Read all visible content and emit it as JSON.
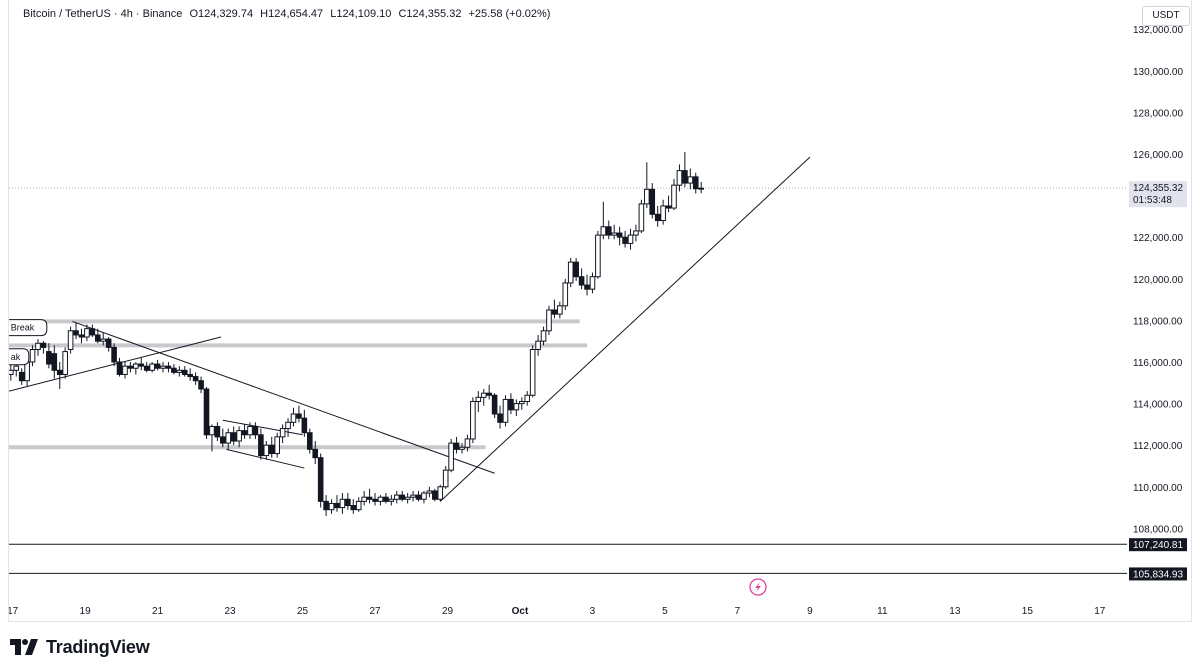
{
  "header": {
    "symbol": "Bitcoin / TetherUS · 4h · Binance",
    "open": "O124,329.74",
    "high": "H124,654.47",
    "low": "L124,109.10",
    "close": "C124,355.32",
    "change": "+25.58 (+0.02%)"
  },
  "currency": "USDT",
  "brand": "TradingView",
  "chart_data": {
    "type": "candlestick",
    "symbol": "Bitcoin / TetherUS",
    "timeframe": "4h",
    "exchange": "Binance",
    "y_ticks": [
      108000,
      110000,
      112000,
      114000,
      116000,
      118000,
      120000,
      122000,
      124000,
      126000,
      128000,
      130000,
      132000
    ],
    "y_tick_labels": [
      "108,000.00",
      "110,000.00",
      "112,000.00",
      "114,000.00",
      "116,000.00",
      "118,000.00",
      "120,000.00",
      "122,000.00",
      "",
      "126,000.00",
      "128,000.00",
      "130,000.00",
      "132,000.00"
    ],
    "x_ticks": [
      "17",
      "19",
      "21",
      "23",
      "25",
      "27",
      "29",
      "Oct",
      "3",
      "5",
      "7",
      "9",
      "11",
      "13",
      "15",
      "17"
    ],
    "x_tick_days": [
      16.75,
      18.75,
      20.75,
      22.75,
      24.75,
      26.75,
      28.75,
      30.75,
      32.75,
      34.75,
      36.75,
      38.75,
      40.75,
      42.75,
      44.75,
      46.75
    ],
    "x_range_days": [
      16.65,
      47.5
    ],
    "ylim": [
      106000,
      132200
    ],
    "last_price": 124355.32,
    "last_price_label": "124,355.32",
    "countdown_label": "01:53:48",
    "horizontal_lines": [
      {
        "price": 107240.81,
        "label": "107,240.81",
        "color": "#131722"
      },
      {
        "price": 105834.93,
        "label": "105,834.93",
        "color": "#131722"
      }
    ],
    "zones": [
      {
        "price": 117950,
        "x_start_day": 16.65,
        "x_end_day": 32.4
      },
      {
        "price": 116800,
        "x_start_day": 16.65,
        "x_end_day": 32.6
      },
      {
        "price": 111900,
        "x_start_day": 16.65,
        "x_end_day": 29.8
      }
    ],
    "trendlines": [
      {
        "p1": [
          16.65,
          114600
        ],
        "p2": [
          22.5,
          117200
        ]
      },
      {
        "p1": [
          18.4,
          117950
        ],
        "p2": [
          30.05,
          110650
        ]
      },
      {
        "p1": [
          22.55,
          113200
        ],
        "p2": [
          24.75,
          112500
        ]
      },
      {
        "p1": [
          22.65,
          111800
        ],
        "p2": [
          24.8,
          110900
        ]
      },
      {
        "p1": [
          28.55,
          109300
        ],
        "p2": [
          38.75,
          125850
        ]
      }
    ],
    "annotations": [
      {
        "text": "Break",
        "day": 16.7,
        "price": 117650
      },
      {
        "text": "ak",
        "day": 16.7,
        "price": 116250
      }
    ],
    "candles": [
      [
        16.7,
        115400,
        115900,
        115100,
        115600
      ],
      [
        16.85,
        115600,
        116000,
        115300,
        115800
      ],
      [
        17.0,
        115500,
        115700,
        114900,
        115100
      ],
      [
        17.15,
        115100,
        116200,
        114800,
        116000
      ],
      [
        17.3,
        116000,
        116800,
        115800,
        116600
      ],
      [
        17.45,
        116600,
        117100,
        116300,
        116900
      ],
      [
        17.6,
        116900,
        117000,
        116400,
        116700
      ],
      [
        17.75,
        116500,
        116900,
        115700,
        115900
      ],
      [
        17.9,
        116400,
        116800,
        115200,
        115600
      ],
      [
        18.05,
        115600,
        116000,
        114700,
        115400
      ],
      [
        18.2,
        115400,
        116700,
        115200,
        116500
      ],
      [
        18.35,
        116600,
        117700,
        116400,
        117500
      ],
      [
        18.5,
        117500,
        117900,
        117100,
        117300
      ],
      [
        18.65,
        117300,
        117600,
        116900,
        117200
      ],
      [
        18.8,
        117200,
        117800,
        117000,
        117600
      ],
      [
        18.95,
        117600,
        117800,
        117200,
        117300
      ],
      [
        19.1,
        117300,
        117600,
        116900,
        117000
      ],
      [
        19.25,
        117000,
        117400,
        116800,
        117100
      ],
      [
        19.4,
        117100,
        117200,
        116500,
        116700
      ],
      [
        19.55,
        116700,
        116900,
        115800,
        116000
      ],
      [
        19.7,
        116000,
        116200,
        115300,
        115400
      ],
      [
        19.85,
        115400,
        116000,
        115200,
        115800
      ],
      [
        20.0,
        115800,
        116000,
        115500,
        115700
      ],
      [
        20.15,
        115700,
        116000,
        115400,
        115900
      ],
      [
        20.3,
        115900,
        116200,
        115600,
        115800
      ],
      [
        20.45,
        115800,
        116000,
        115500,
        115600
      ],
      [
        20.6,
        115600,
        116000,
        115500,
        115900
      ],
      [
        20.75,
        115900,
        116100,
        115600,
        115700
      ],
      [
        20.9,
        115700,
        116000,
        115500,
        115800
      ],
      [
        21.05,
        115800,
        116000,
        115500,
        115700
      ],
      [
        21.2,
        115700,
        115900,
        115400,
        115500
      ],
      [
        21.35,
        115500,
        115800,
        115300,
        115600
      ],
      [
        21.5,
        115600,
        115800,
        115300,
        115400
      ],
      [
        21.65,
        115400,
        115700,
        115100,
        115300
      ],
      [
        21.8,
        115300,
        115500,
        114900,
        115100
      ],
      [
        21.95,
        115100,
        115300,
        114500,
        114700
      ],
      [
        22.1,
        114700,
        114800,
        112300,
        112500
      ],
      [
        22.25,
        112500,
        113000,
        111700,
        112900
      ],
      [
        22.4,
        112900,
        113100,
        112200,
        112400
      ],
      [
        22.55,
        112400,
        112800,
        111900,
        112100
      ],
      [
        22.7,
        112100,
        112800,
        111800,
        112600
      ],
      [
        22.85,
        112600,
        112900,
        112000,
        112200
      ],
      [
        23.0,
        112200,
        112900,
        111900,
        112700
      ],
      [
        23.15,
        112700,
        113000,
        112300,
        112500
      ],
      [
        23.3,
        112500,
        113100,
        112300,
        112900
      ],
      [
        23.45,
        112900,
        113100,
        112300,
        112500
      ],
      [
        23.6,
        112500,
        112800,
        111300,
        111500
      ],
      [
        23.75,
        111500,
        112200,
        111300,
        112000
      ],
      [
        23.9,
        112000,
        112400,
        111400,
        111600
      ],
      [
        24.05,
        111600,
        112600,
        111400,
        112400
      ],
      [
        24.2,
        112400,
        113000,
        112100,
        112800
      ],
      [
        24.35,
        112800,
        113300,
        112400,
        113100
      ],
      [
        24.5,
        113100,
        113800,
        112900,
        113500
      ],
      [
        24.65,
        113500,
        113900,
        113100,
        113300
      ],
      [
        24.8,
        113300,
        113700,
        112400,
        112600
      ],
      [
        24.95,
        112600,
        112800,
        111600,
        111800
      ],
      [
        25.1,
        111800,
        112200,
        111100,
        111400
      ],
      [
        25.25,
        111400,
        111600,
        109000,
        109300
      ],
      [
        25.4,
        109300,
        109600,
        108600,
        108900
      ],
      [
        25.55,
        108900,
        109400,
        108700,
        109200
      ],
      [
        25.7,
        109200,
        109600,
        108800,
        109000
      ],
      [
        25.85,
        109000,
        109700,
        108700,
        109400
      ],
      [
        26.0,
        109400,
        109700,
        108900,
        109100
      ],
      [
        26.15,
        109100,
        109400,
        108700,
        108900
      ],
      [
        26.3,
        108900,
        109500,
        108800,
        109300
      ],
      [
        26.45,
        109300,
        109800,
        109100,
        109500
      ],
      [
        26.6,
        109500,
        109900,
        109200,
        109400
      ],
      [
        26.75,
        109400,
        109700,
        109100,
        109300
      ],
      [
        26.9,
        109300,
        109600,
        109100,
        109500
      ],
      [
        27.05,
        109500,
        109700,
        109200,
        109300
      ],
      [
        27.2,
        109300,
        109600,
        109100,
        109400
      ],
      [
        27.35,
        109400,
        109800,
        109200,
        109600
      ],
      [
        27.5,
        109600,
        109800,
        109300,
        109400
      ],
      [
        27.65,
        109400,
        109700,
        109200,
        109500
      ],
      [
        27.8,
        109500,
        109800,
        109300,
        109600
      ],
      [
        27.95,
        109600,
        109800,
        109300,
        109400
      ],
      [
        28.1,
        109400,
        109800,
        109200,
        109700
      ],
      [
        28.25,
        109700,
        110000,
        109500,
        109800
      ],
      [
        28.4,
        109800,
        109900,
        109300,
        109400
      ],
      [
        28.55,
        109400,
        110100,
        109300,
        110000
      ],
      [
        28.7,
        110000,
        111000,
        109900,
        110800
      ],
      [
        28.85,
        110800,
        112300,
        110700,
        112100
      ],
      [
        29.0,
        112100,
        112400,
        111600,
        111800
      ],
      [
        29.15,
        111800,
        112100,
        111600,
        111900
      ],
      [
        29.3,
        111900,
        112500,
        111700,
        112300
      ],
      [
        29.45,
        112300,
        114300,
        112100,
        114100
      ],
      [
        29.6,
        114100,
        114600,
        113600,
        114300
      ],
      [
        29.75,
        114300,
        114700,
        113900,
        114500
      ],
      [
        29.9,
        114500,
        114900,
        114200,
        114400
      ],
      [
        30.05,
        114400,
        114500,
        113300,
        113500
      ],
      [
        30.2,
        113500,
        113900,
        112800,
        113100
      ],
      [
        30.35,
        113100,
        114400,
        112900,
        114200
      ],
      [
        30.5,
        114200,
        114500,
        113500,
        113700
      ],
      [
        30.65,
        113700,
        114200,
        113400,
        114000
      ],
      [
        30.8,
        114000,
        114300,
        113700,
        114100
      ],
      [
        30.95,
        114100,
        114600,
        113900,
        114400
      ],
      [
        31.1,
        114400,
        116800,
        114300,
        116600
      ],
      [
        31.25,
        116600,
        117300,
        116300,
        117000
      ],
      [
        31.4,
        117000,
        117700,
        116800,
        117500
      ],
      [
        31.55,
        117500,
        118700,
        117300,
        118500
      ],
      [
        31.7,
        118500,
        119000,
        118100,
        118300
      ],
      [
        31.85,
        118300,
        118900,
        118100,
        118700
      ],
      [
        32.0,
        118700,
        120000,
        118500,
        119800
      ],
      [
        32.15,
        119800,
        121000,
        119600,
        120800
      ],
      [
        32.3,
        120800,
        121000,
        119900,
        120100
      ],
      [
        32.45,
        120100,
        120500,
        119500,
        119700
      ],
      [
        32.6,
        119700,
        120200,
        119200,
        119500
      ],
      [
        32.75,
        119500,
        120300,
        119300,
        120100
      ],
      [
        32.9,
        120100,
        122300,
        120000,
        122100
      ],
      [
        33.05,
        122100,
        123700,
        121900,
        122500
      ],
      [
        33.2,
        122500,
        122800,
        121900,
        122100
      ],
      [
        33.35,
        122100,
        122600,
        121900,
        122200
      ],
      [
        33.5,
        122200,
        122500,
        121600,
        122000
      ],
      [
        33.65,
        122000,
        122300,
        121500,
        121700
      ],
      [
        33.8,
        121700,
        122400,
        121400,
        122100
      ],
      [
        33.95,
        122100,
        122600,
        121800,
        122300
      ],
      [
        34.1,
        122300,
        123800,
        122200,
        123600
      ],
      [
        34.25,
        123600,
        125600,
        123400,
        124300
      ],
      [
        34.4,
        124300,
        124600,
        122900,
        123100
      ],
      [
        34.55,
        123100,
        123500,
        122500,
        122800
      ],
      [
        34.7,
        122800,
        123800,
        122600,
        123500
      ],
      [
        34.85,
        123500,
        124000,
        123200,
        123400
      ],
      [
        35.0,
        123400,
        124800,
        123300,
        124500
      ],
      [
        35.15,
        124500,
        125500,
        124200,
        125200
      ],
      [
        35.3,
        125200,
        126100,
        124400,
        124600
      ],
      [
        35.45,
        124600,
        125300,
        124300,
        124900
      ],
      [
        35.6,
        124900,
        125100,
        124100,
        124330
      ],
      [
        35.75,
        124330,
        124650,
        124110,
        124355
      ]
    ]
  }
}
